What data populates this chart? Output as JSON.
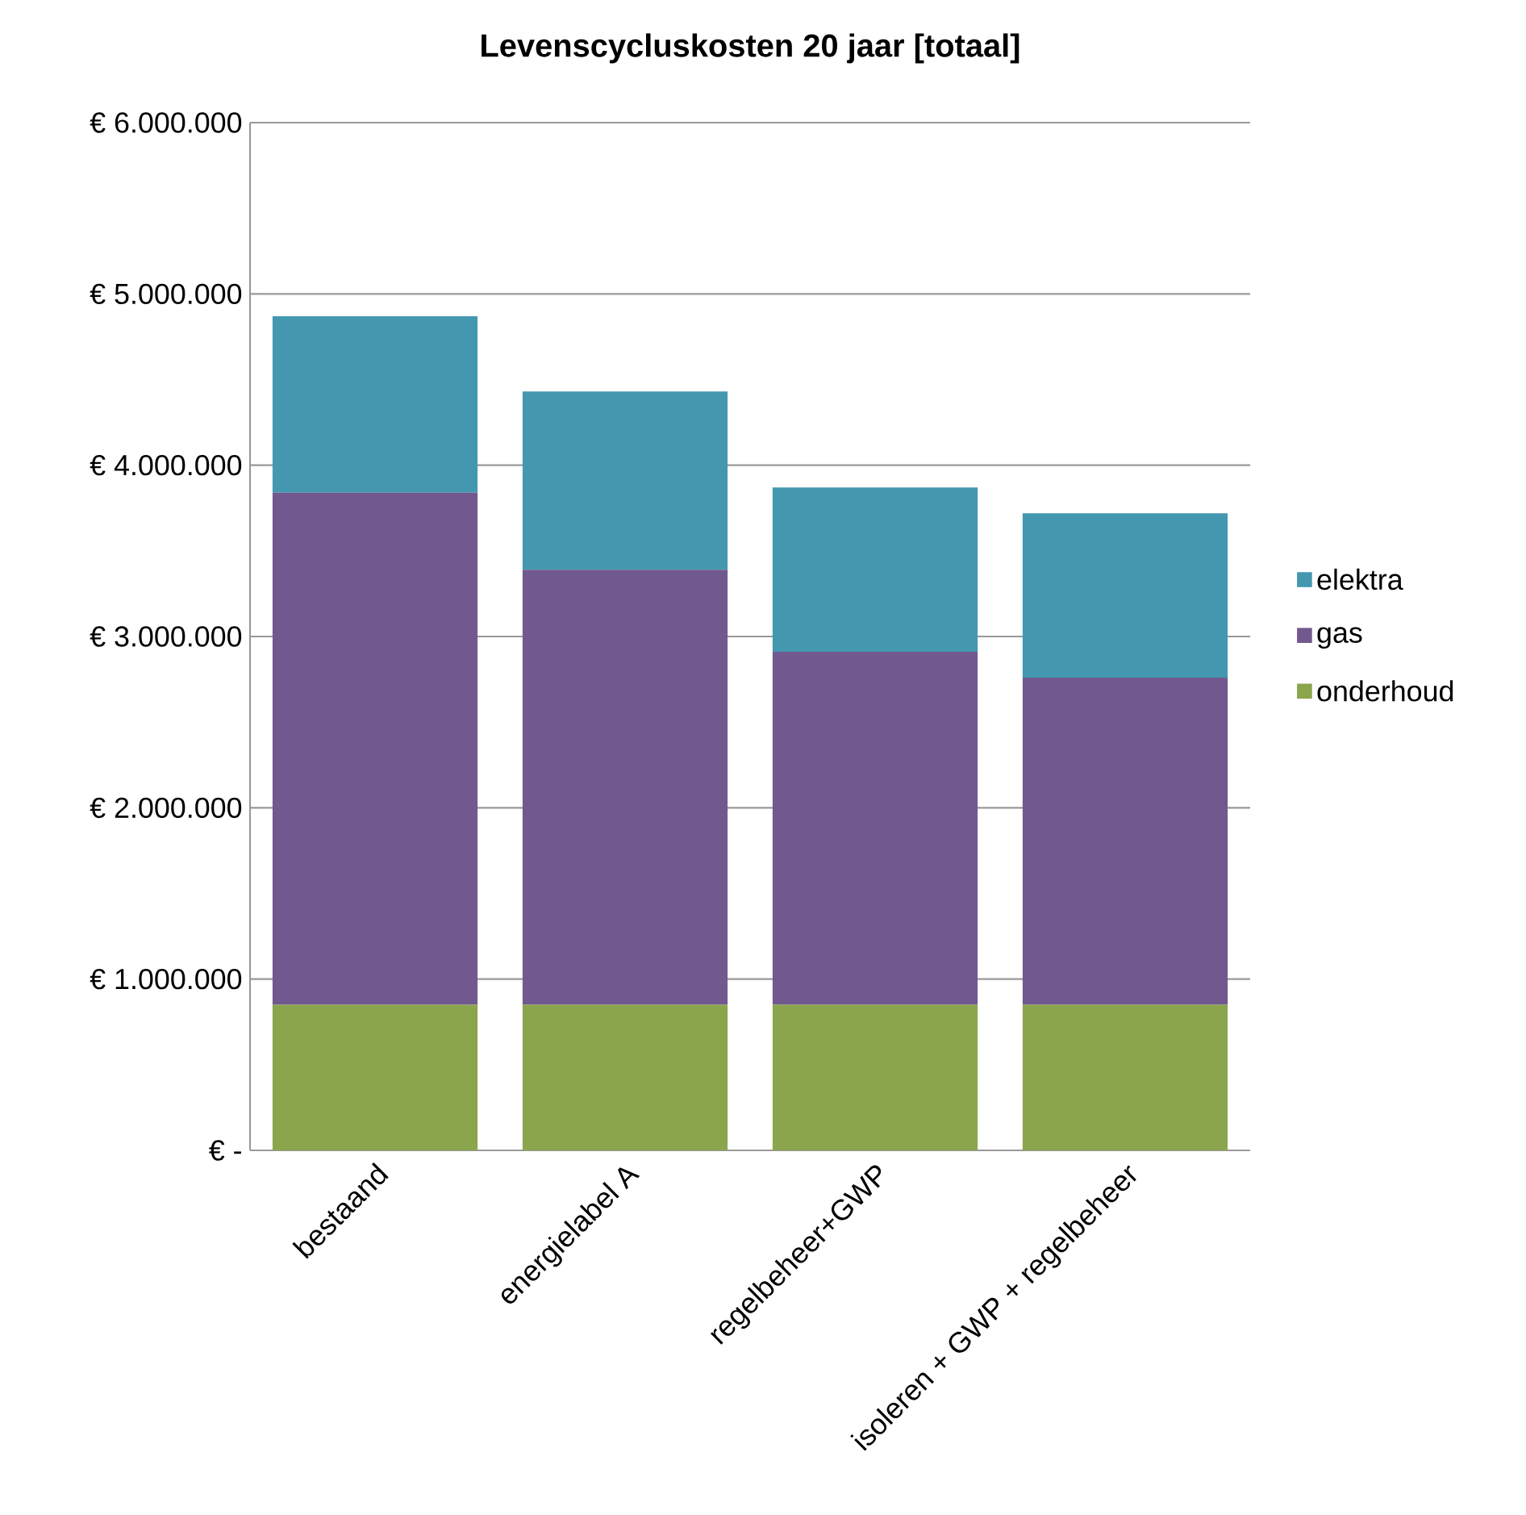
{
  "chart_data": {
    "type": "bar",
    "stacked": true,
    "title": "Levenscycluskosten 20 jaar [totaal]",
    "categories": [
      "bestaand",
      "energielabel A",
      "regelbeheer+GWP",
      "isoleren + GWP + regelbeheer"
    ],
    "series": [
      {
        "name": "onderhoud",
        "color": "#8aa54c",
        "values": [
          850000,
          850000,
          850000,
          850000
        ]
      },
      {
        "name": "gas",
        "color": "#71598f",
        "values": [
          2990000,
          2540000,
          2060000,
          1910000
        ]
      },
      {
        "name": "elektra",
        "color": "#4398b0",
        "values": [
          1030000,
          1040000,
          960000,
          960000
        ]
      }
    ],
    "ylim": [
      0,
      6000000
    ],
    "yticks": [
      {
        "value": 0,
        "label": "€ -"
      },
      {
        "value": 1000000,
        "label": "€ 1.000.000"
      },
      {
        "value": 2000000,
        "label": "€ 2.000.000"
      },
      {
        "value": 3000000,
        "label": "€ 3.000.000"
      },
      {
        "value": 4000000,
        "label": "€ 4.000.000"
      },
      {
        "value": 5000000,
        "label": "€ 5.000.000"
      },
      {
        "value": 6000000,
        "label": "€ 6.000.000"
      }
    ],
    "grid": "y",
    "legend": "right"
  }
}
